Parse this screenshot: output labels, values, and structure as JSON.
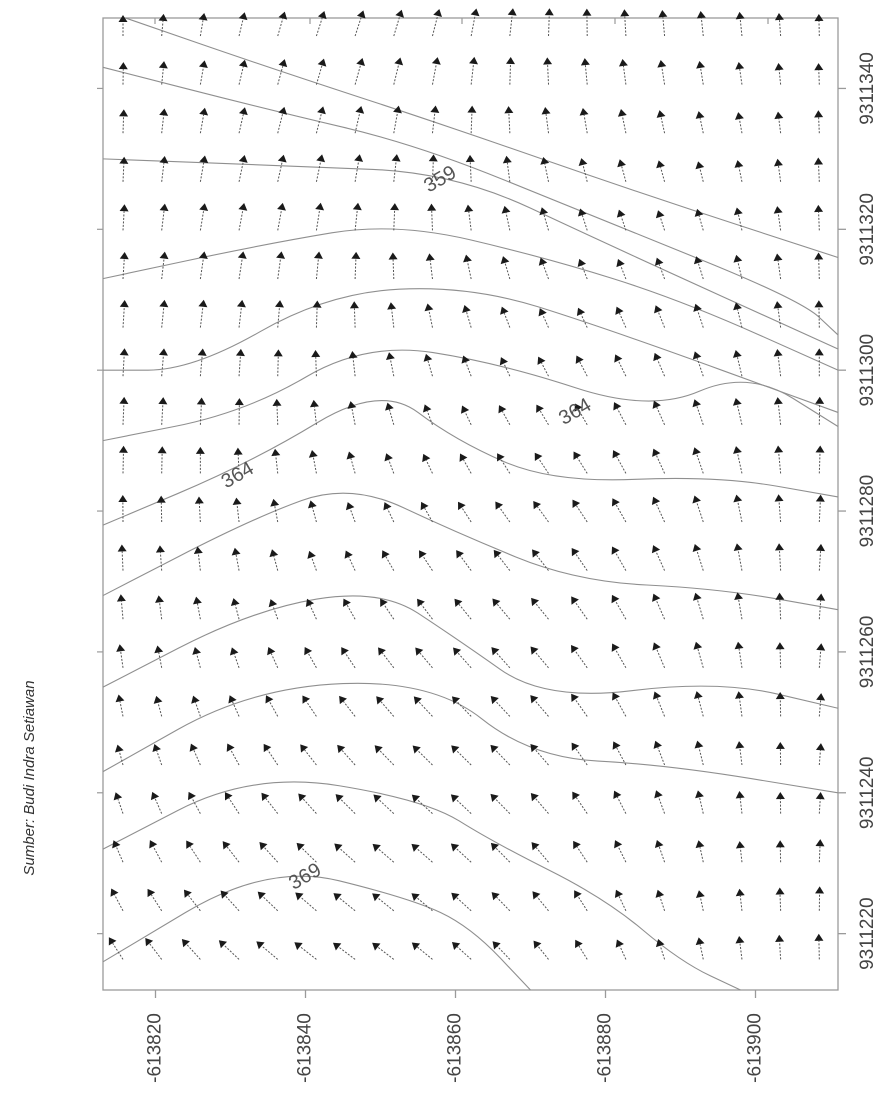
{
  "chart_data": {
    "type": "vector-field-contour",
    "title": "",
    "xlabel": "",
    "ylabel": "",
    "grid": false,
    "legend": "none",
    "source_note": "Sumber: Budi Indra Setiawan",
    "x_axis": {
      "side": "right",
      "range": [
        9311212,
        9311350
      ],
      "ticks": [
        9311220,
        9311240,
        9311260,
        9311280,
        9311300,
        9311320,
        9311340
      ],
      "tick_labels": [
        "9311220",
        "9311240",
        "9311260",
        "9311280",
        "9311300",
        "9311320",
        "9311340"
      ]
    },
    "y_axis": {
      "side": "bottom",
      "range": [
        -613813,
        -613911
      ],
      "ticks": [
        -613820,
        -613840,
        -613860,
        -613880,
        -613900
      ],
      "tick_labels": [
        "-613820",
        "-613840",
        "-613860",
        "-613880",
        "-613900"
      ]
    },
    "contour_labels": [
      {
        "text": "359",
        "x": 9311327,
        "y": -613858
      },
      {
        "text": "364",
        "x": 9311294,
        "y": -613876
      },
      {
        "text": "364",
        "x": 9311285,
        "y": -613831
      },
      {
        "text": "369",
        "x": 9311228,
        "y": -613840
      }
    ],
    "contours": [
      [
        [
          9311350,
          -613816
        ],
        [
          9311343,
          -613835
        ],
        [
          9311335,
          -613858
        ],
        [
          9311325,
          -613885
        ],
        [
          9311316,
          -613911
        ]
      ],
      [
        [
          9311343,
          -613813
        ],
        [
          9311337,
          -613835
        ],
        [
          9311332,
          -613855
        ],
        [
          9311322,
          -613878
        ],
        [
          9311310,
          -613906
        ],
        [
          9311305,
          -613911
        ]
      ],
      [
        [
          9311330,
          -613813
        ],
        [
          9311329,
          -613838
        ],
        [
          9311328,
          -613860
        ],
        [
          9311318,
          -613880
        ],
        [
          9311303,
          -613911
        ]
      ],
      [
        [
          9311313,
          -613813
        ],
        [
          9311318,
          -613835
        ],
        [
          9311321,
          -613852
        ],
        [
          9311316,
          -613872
        ],
        [
          9311310,
          -613890
        ],
        [
          9311300,
          -613911
        ]
      ],
      [
        [
          9311300,
          -613813
        ],
        [
          9311300,
          -613825
        ],
        [
          9311311,
          -613843
        ],
        [
          9311312,
          -613862
        ],
        [
          9311306,
          -613880
        ],
        [
          9311294,
          -613911
        ]
      ],
      [
        [
          9311290,
          -613813
        ],
        [
          9311294,
          -613832
        ],
        [
          9311304,
          -613848
        ],
        [
          9311301,
          -613866
        ],
        [
          9311294,
          -613886
        ],
        [
          9311300,
          -613899
        ],
        [
          9311292,
          -613911
        ]
      ],
      [
        [
          9311278,
          -613813
        ],
        [
          9311287,
          -613833
        ],
        [
          9311298,
          -613850
        ],
        [
          9311290,
          -613860
        ],
        [
          9311284,
          -613873
        ],
        [
          9311285,
          -613895
        ],
        [
          9311282,
          -613911
        ]
      ],
      [
        [
          9311268,
          -613813
        ],
        [
          9311279,
          -613833
        ],
        [
          9311284,
          -613846
        ],
        [
          9311277,
          -613860
        ],
        [
          9311270,
          -613876
        ],
        [
          9311269,
          -613895
        ],
        [
          9311266,
          -613911
        ]
      ],
      [
        [
          9311255,
          -613813
        ],
        [
          9311266,
          -613833
        ],
        [
          9311269,
          -613850
        ],
        [
          9311262,
          -613860
        ],
        [
          9311253,
          -613872
        ],
        [
          9311256,
          -613895
        ],
        [
          9311252,
          -613911
        ]
      ],
      [
        [
          9311243,
          -613813
        ],
        [
          9311255,
          -613833
        ],
        [
          9311256,
          -613857
        ],
        [
          9311245,
          -613870
        ],
        [
          9311244,
          -613888
        ],
        [
          9311240,
          -613911
        ]
      ],
      [
        [
          9311232,
          -613813
        ],
        [
          9311243,
          -613833
        ],
        [
          9311239,
          -613856
        ],
        [
          9311233,
          -613865
        ],
        [
          9311225,
          -613880
        ],
        [
          9311216,
          -613890
        ],
        [
          9311212,
          -613898
        ]
      ],
      [
        [
          9311216,
          -613813
        ],
        [
          9311230,
          -613835
        ],
        [
          9311225,
          -613854
        ],
        [
          9311221,
          -613862
        ],
        [
          9311212,
          -613870
        ]
      ]
    ]
  }
}
